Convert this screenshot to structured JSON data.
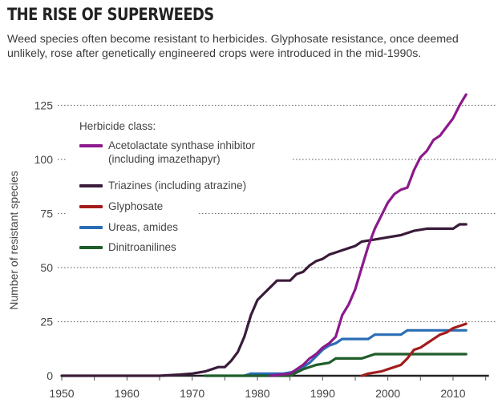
{
  "header": {
    "title": "THE RISE OF SUPERWEEDS",
    "subtitle": "Weed species often become resistant to herbicides. Glyphosate resistance, once deemed unlikely, rose after genetically engineered crops were introduced in the mid-1990s."
  },
  "chart_data": {
    "type": "line",
    "title": "THE RISE OF SUPERWEEDS",
    "xlabel": "",
    "ylabel": "Number of resistant species",
    "xlim": [
      1950,
      2015
    ],
    "ylim": [
      0,
      130
    ],
    "x_ticks": [
      1950,
      1960,
      1970,
      1980,
      1990,
      2000,
      2010
    ],
    "y_ticks": [
      0,
      25,
      50,
      75,
      100,
      125
    ],
    "grid": "horizontal dotted",
    "legend_title": "Herbicide class:",
    "legend_position": "top-left",
    "series": [
      {
        "name": "Acetolactate synthase inhibitor (including imazethapyr)",
        "legend_lines": [
          "Acetolactate synthase inhibitor",
          "(including imazethapyr)"
        ],
        "color": "#8b1a8b",
        "x": [
          1982,
          1985,
          1986,
          1987,
          1988,
          1989,
          1990,
          1991,
          1992,
          1993,
          1994,
          1995,
          1996,
          1997,
          1998,
          1999,
          2000,
          2001,
          2002,
          2003,
          2004,
          2005,
          2006,
          2007,
          2008,
          2009,
          2010,
          2011,
          2012
        ],
        "y": [
          0,
          1,
          3,
          5,
          8,
          10,
          13,
          15,
          18,
          28,
          33,
          40,
          50,
          60,
          68,
          74,
          80,
          84,
          86,
          87,
          95,
          101,
          104,
          109,
          111,
          115,
          119,
          125,
          130
        ]
      },
      {
        "name": "Triazines (including atrazine)",
        "legend_lines": [
          "Triazines (including atrazine)"
        ],
        "color": "#3a1b3a",
        "x": [
          1950,
          1965,
          1968,
          1970,
          1972,
          1974,
          1975,
          1976,
          1977,
          1978,
          1979,
          1980,
          1981,
          1982,
          1983,
          1985,
          1986,
          1987,
          1988,
          1989,
          1990,
          1991,
          1992,
          1993,
          1994,
          1995,
          1996,
          1998,
          2000,
          2002,
          2004,
          2006,
          2010,
          2011,
          2012
        ],
        "y": [
          0,
          0,
          0.5,
          1,
          2,
          4,
          4,
          7,
          11,
          18,
          28,
          35,
          38,
          41,
          44,
          44,
          47,
          48,
          51,
          53,
          54,
          56,
          57,
          58,
          59,
          60,
          62,
          63,
          64,
          65,
          67,
          68,
          68,
          70,
          70
        ]
      },
      {
        "name": "Glyphosate",
        "legend_lines": [
          "Glyphosate"
        ],
        "color": "#a31c1c",
        "x": [
          1996,
          1997,
          1999,
          2000,
          2001,
          2002,
          2003,
          2004,
          2005,
          2006,
          2007,
          2008,
          2009,
          2010,
          2011,
          2012
        ],
        "y": [
          0,
          1,
          2,
          3,
          4,
          5,
          8,
          12,
          13,
          15,
          17,
          19,
          20,
          22,
          23,
          24
        ]
      },
      {
        "name": "Ureas, amides",
        "legend_lines": [
          "Ureas, amides"
        ],
        "color": "#2a6db5",
        "x": [
          1978,
          1979,
          1984,
          1986,
          1988,
          1989,
          1990,
          1991,
          1992,
          1993,
          1997,
          1998,
          2002,
          2003,
          2009,
          2012
        ],
        "y": [
          0,
          1,
          1,
          2,
          6,
          9,
          12,
          14,
          15,
          17,
          17,
          19,
          19,
          21,
          21,
          21
        ]
      },
      {
        "name": "Dinitroanilines",
        "legend_lines": [
          "Dinitroanilines"
        ],
        "color": "#1f5e2a",
        "x": [
          1972,
          1985,
          1987,
          1989,
          1991,
          1992,
          1996,
          1997,
          1998,
          2012
        ],
        "y": [
          0,
          0,
          3,
          5,
          6,
          8,
          8,
          9,
          10,
          10
        ]
      }
    ]
  }
}
